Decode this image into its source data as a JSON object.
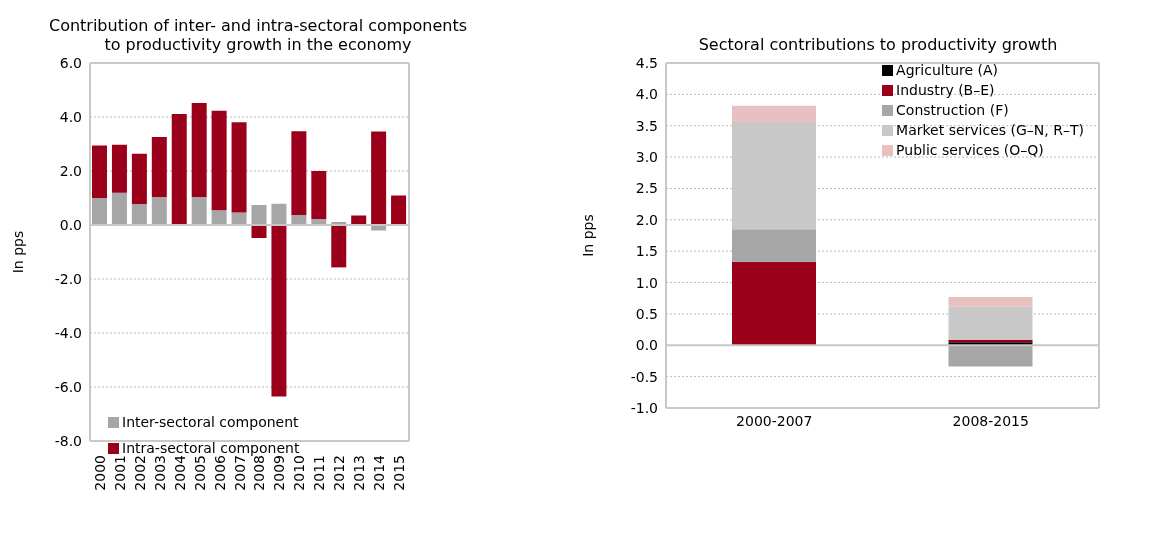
{
  "chart_data": [
    {
      "type": "bar",
      "title": "Contribution of inter- and intra-sectoral components to productivity growth in the economy",
      "ylabel": "In pps",
      "stacked": true,
      "categories": [
        "2000",
        "2001",
        "2002",
        "2003",
        "2004",
        "2005",
        "2006",
        "2007",
        "2008",
        "2009",
        "2010",
        "2011",
        "2012",
        "2013",
        "2014",
        "2015"
      ],
      "series": [
        {
          "name": "Inter-sectoral component",
          "color": "#a6a6a6",
          "values": [
            1.0,
            1.19,
            0.78,
            1.04,
            0.02,
            1.04,
            0.55,
            0.46,
            0.74,
            0.79,
            0.37,
            0.22,
            0.11,
            0.0,
            -0.2,
            0.0
          ]
        },
        {
          "name": "Intra-sectoral component",
          "color": "#9b001b",
          "values": [
            1.94,
            1.78,
            1.86,
            2.22,
            4.09,
            3.48,
            3.68,
            3.35,
            -0.48,
            -6.35,
            3.1,
            1.78,
            -1.57,
            0.35,
            3.46,
            1.09
          ]
        }
      ],
      "ylim": [
        -8,
        6
      ],
      "yticks": [
        {
          "value": -8,
          "label": "-8.0"
        },
        {
          "value": -6,
          "label": "-6.0"
        },
        {
          "value": -4,
          "label": "-4.0"
        },
        {
          "value": -2,
          "label": "-2.0"
        },
        {
          "value": 0,
          "label": "0.0"
        },
        {
          "value": 2,
          "label": "2.0"
        },
        {
          "value": 4,
          "label": "4.0"
        },
        {
          "value": 6,
          "label": "6.0"
        }
      ],
      "grid": "y",
      "legend": "bottom left"
    },
    {
      "type": "bar",
      "title": "Sectoral contributions to productivity growth",
      "ylabel": "In pps",
      "stacked": true,
      "categories": [
        "2000-2007",
        "2008-2015"
      ],
      "series": [
        {
          "name": "Agriculture (A)",
          "color": "#000000",
          "values": [
            0.0,
            0.05
          ]
        },
        {
          "name": "Industry (B–E)",
          "color": "#9b001b",
          "values": [
            1.33,
            0.04
          ]
        },
        {
          "name": "Construction (F)",
          "color": "#a6a6a6",
          "values": [
            0.52,
            -0.34
          ]
        },
        {
          "name": "Market services (G–N, R–T)",
          "color": "#c8c8c8",
          "values": [
            1.71,
            0.53
          ]
        },
        {
          "name": "Public services (O–Q)",
          "color": "#e8c0c0",
          "values": [
            0.26,
            0.15
          ]
        }
      ],
      "ylim": [
        -1,
        4.5
      ],
      "yticks": [
        {
          "value": -1,
          "label": "-1.0"
        },
        {
          "value": -0.5,
          "label": "-0.5"
        },
        {
          "value": 0,
          "label": "0.0"
        },
        {
          "value": 0.5,
          "label": "0.5"
        },
        {
          "value": 1,
          "label": "1.0"
        },
        {
          "value": 1.5,
          "label": "1.5"
        },
        {
          "value": 2,
          "label": "2.0"
        },
        {
          "value": 2.5,
          "label": "2.5"
        },
        {
          "value": 3,
          "label": "3.0"
        },
        {
          "value": 3.5,
          "label": "3.5"
        },
        {
          "value": 4,
          "label": "4.0"
        },
        {
          "value": 4.5,
          "label": "4.5"
        }
      ],
      "grid": "y",
      "legend": "top right"
    }
  ]
}
